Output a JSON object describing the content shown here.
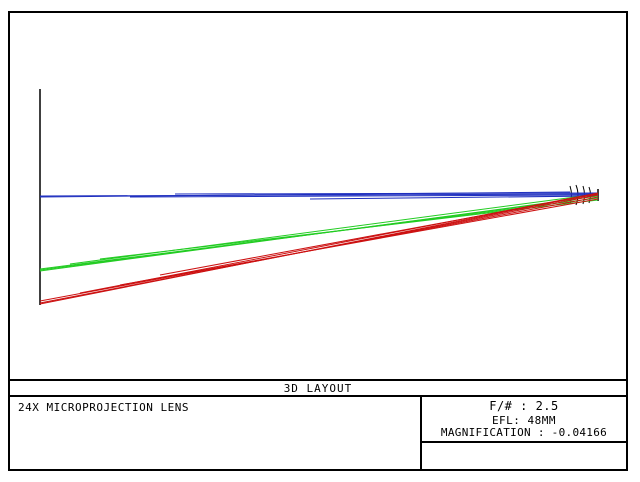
{
  "layout": {
    "title": "3D LAYOUT",
    "lens_name": "24X MICROPROJECTION LENS",
    "f_number": "F/# : 2.5",
    "efl": "EFL: 48MM",
    "magnification": "MAGNIFICATION : -0.04166"
  },
  "rays": {
    "colors": {
      "field_1": "#1f2fbf",
      "field_2": "#22cc22",
      "field_3": "#cc1111"
    }
  }
}
